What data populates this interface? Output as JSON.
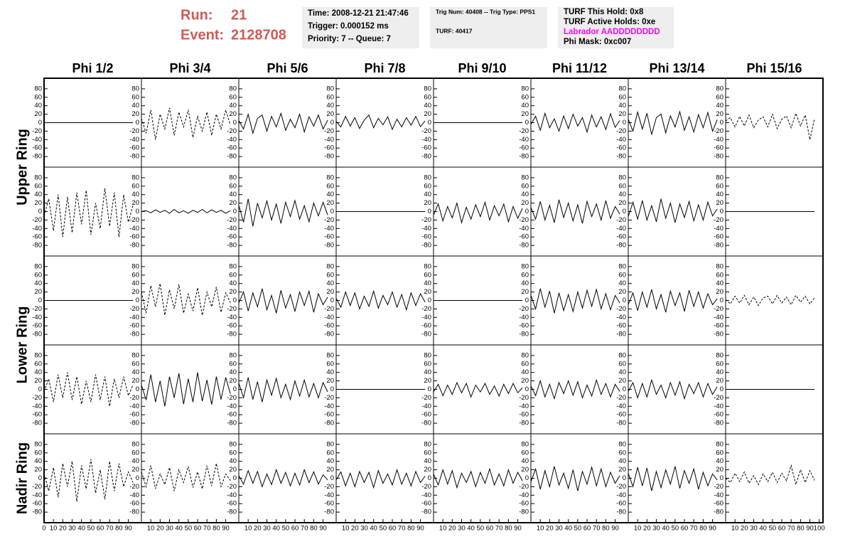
{
  "header": {
    "run_label": "Run:",
    "run": "21",
    "event_label": "Event:",
    "event": "2128708",
    "box1": [
      "Time: 2008-12-21 21:47:46",
      "Trigger: 0.000152 ms",
      "Priority: 7 -- Queue: 7"
    ],
    "box2": [
      "Trig Num: 40408 -- Trig Type: PPS1",
      "TURF: 40417"
    ],
    "box3": [
      "TURF This Hold: 0x8",
      "TURF Active Holds: 0xe",
      "Labrador AADDDDDDDD",
      "Phi Mask: 0xc007"
    ]
  },
  "chart_data": {
    "type": "line",
    "color": "#000000",
    "columns": [
      "Phi 1/2",
      "Phi 3/4",
      "Phi 5/6",
      "Phi 7/8",
      "Phi 9/10",
      "Phi 11/12",
      "Phi 13/14",
      "Phi 15/16"
    ],
    "ring_labels": [
      "Upper Ring",
      "Lower Ring",
      "Nadir Ring"
    ],
    "xlim": [
      0,
      104
    ],
    "xticks": [
      0,
      10,
      20,
      30,
      40,
      50,
      60,
      70,
      80,
      90,
      100
    ],
    "ylim": [
      -105,
      105
    ],
    "yticks": [
      -80,
      -60,
      -40,
      -20,
      0,
      20,
      40,
      60,
      80
    ],
    "x": [
      0,
      5,
      10,
      15,
      20,
      25,
      30,
      35,
      40,
      45,
      50,
      55,
      60,
      65,
      70,
      75,
      80,
      85,
      90,
      95
    ],
    "rows": [
      [
        {
          "style": "solid",
          "values": [
            0,
            0,
            0,
            0,
            0,
            0,
            0,
            0,
            0,
            0,
            0,
            0,
            0,
            0,
            0,
            0,
            0,
            0,
            0,
            0
          ]
        },
        {
          "style": "dashed",
          "values": [
            10,
            -25,
            30,
            -40,
            20,
            -15,
            35,
            -30,
            25,
            -10,
            30,
            -35,
            15,
            -20,
            25,
            -30,
            20,
            -15,
            30,
            -5
          ]
        },
        {
          "style": "solid",
          "values": [
            5,
            -15,
            20,
            -25,
            10,
            18,
            -20,
            15,
            -10,
            22,
            -18,
            8,
            -12,
            20,
            -22,
            14,
            -8,
            18,
            -15,
            6
          ]
        },
        {
          "style": "solid",
          "values": [
            3,
            -10,
            15,
            -8,
            12,
            -14,
            6,
            18,
            -12,
            10,
            -5,
            14,
            -16,
            8,
            -10,
            12,
            -6,
            15,
            -9,
            4
          ]
        },
        {
          "style": "solid",
          "values": [
            0,
            0,
            0,
            0,
            0,
            0,
            0,
            0,
            0,
            0,
            0,
            0,
            0,
            0,
            0,
            0,
            0,
            0,
            0,
            0
          ]
        },
        {
          "style": "solid",
          "values": [
            -4,
            15,
            -18,
            22,
            -12,
            9,
            -20,
            16,
            -14,
            20,
            -8,
            12,
            -22,
            18,
            -10,
            14,
            -16,
            21,
            -11,
            5
          ]
        },
        {
          "style": "solid",
          "values": [
            8,
            -20,
            25,
            -15,
            22,
            -28,
            12,
            20,
            -24,
            16,
            -10,
            26,
            -18,
            14,
            -22,
            19,
            -12,
            24,
            -20,
            7
          ]
        },
        {
          "style": "dashed",
          "values": [
            4,
            12,
            -10,
            15,
            -8,
            18,
            -12,
            6,
            14,
            -10,
            20,
            -14,
            8,
            16,
            -12,
            22,
            -8,
            18,
            -40,
            10
          ]
        }
      ],
      [
        {
          "style": "dashed",
          "values": [
            -10,
            30,
            -45,
            40,
            -60,
            35,
            -50,
            45,
            -30,
            50,
            -55,
            20,
            -40,
            55,
            -35,
            45,
            -60,
            40,
            -25,
            15
          ]
        },
        {
          "style": "solid",
          "values": [
            0,
            2,
            -3,
            4,
            -2,
            3,
            -4,
            5,
            -3,
            2,
            -4,
            3,
            -2,
            5,
            -3,
            4,
            -2,
            3,
            -4,
            2
          ]
        },
        {
          "style": "solid",
          "values": [
            15,
            -25,
            30,
            -35,
            20,
            -15,
            25,
            -20,
            18,
            -28,
            22,
            -12,
            26,
            -18,
            14,
            -24,
            20,
            -10,
            22,
            -8
          ]
        },
        {
          "style": "solid",
          "values": [
            0,
            0,
            0,
            0,
            0,
            0,
            0,
            0,
            0,
            0,
            0,
            0,
            0,
            0,
            0,
            0,
            0,
            0,
            0,
            0
          ]
        },
        {
          "style": "solid",
          "values": [
            -8,
            18,
            -22,
            12,
            -15,
            20,
            -26,
            10,
            -18,
            16,
            -12,
            22,
            -20,
            14,
            -10,
            18,
            -24,
            12,
            -16,
            8
          ]
        },
        {
          "style": "solid",
          "values": [
            10,
            -18,
            24,
            -20,
            15,
            -26,
            28,
            -14,
            20,
            -22,
            16,
            -28,
            24,
            -12,
            18,
            -20,
            26,
            -16,
            12,
            -6
          ]
        },
        {
          "style": "solid",
          "values": [
            -12,
            22,
            -18,
            26,
            -20,
            14,
            -24,
            30,
            -16,
            20,
            -26,
            18,
            -14,
            24,
            -22,
            16,
            -20,
            22,
            -10,
            6
          ]
        },
        {
          "style": "solid",
          "values": [
            0,
            0,
            0,
            0,
            0,
            0,
            0,
            0,
            0,
            0,
            0,
            0,
            0,
            0,
            0,
            0,
            0,
            0,
            0,
            0
          ]
        }
      ],
      [
        {
          "style": "solid",
          "values": [
            0,
            0,
            0,
            0,
            0,
            0,
            0,
            0,
            0,
            0,
            0,
            0,
            0,
            0,
            0,
            0,
            0,
            0,
            0,
            0
          ]
        },
        {
          "style": "dashed",
          "values": [
            20,
            -30,
            35,
            -15,
            40,
            -35,
            25,
            -20,
            38,
            -30,
            15,
            -25,
            30,
            -35,
            20,
            -15,
            32,
            -28,
            18,
            -5
          ]
        },
        {
          "style": "solid",
          "values": [
            -6,
            20,
            -25,
            18,
            -15,
            28,
            -22,
            12,
            -30,
            24,
            -18,
            14,
            -26,
            20,
            -12,
            22,
            -28,
            16,
            -10,
            8
          ]
        },
        {
          "style": "solid",
          "values": [
            5,
            -16,
            20,
            -12,
            18,
            -20,
            10,
            -14,
            22,
            -18,
            12,
            -10,
            20,
            -16,
            14,
            -22,
            18,
            -12,
            16,
            -4
          ]
        },
        {
          "style": "solid",
          "values": [
            0,
            0,
            0,
            0,
            0,
            0,
            0,
            0,
            0,
            0,
            0,
            0,
            0,
            0,
            0,
            0,
            0,
            0,
            0,
            0
          ]
        },
        {
          "style": "solid",
          "values": [
            12,
            -20,
            28,
            -16,
            22,
            -30,
            18,
            -24,
            14,
            -26,
            20,
            -18,
            24,
            -14,
            26,
            -20,
            16,
            -22,
            12,
            -6
          ]
        },
        {
          "style": "solid",
          "values": [
            -10,
            18,
            -24,
            20,
            -16,
            26,
            -20,
            14,
            -28,
            22,
            -12,
            18,
            -26,
            24,
            -14,
            20,
            -18,
            16,
            -10,
            4
          ]
        },
        {
          "style": "dashed",
          "values": [
            2,
            -8,
            10,
            -6,
            12,
            -10,
            8,
            -12,
            6,
            10,
            -8,
            12,
            -6,
            8,
            -10,
            12,
            -4,
            10,
            -8,
            6
          ]
        }
      ],
      [
        {
          "style": "dashed",
          "values": [
            -5,
            25,
            -30,
            35,
            -20,
            40,
            -25,
            30,
            -35,
            20,
            -30,
            35,
            -25,
            30,
            -40,
            25,
            -20,
            30,
            -15,
            10
          ]
        },
        {
          "style": "solid",
          "values": [
            10,
            -25,
            35,
            -30,
            20,
            -40,
            30,
            -20,
            38,
            -35,
            25,
            -30,
            40,
            -28,
            22,
            -36,
            30,
            -24,
            28,
            -10
          ]
        },
        {
          "style": "solid",
          "values": [
            15,
            -20,
            28,
            -24,
            18,
            -30,
            22,
            -14,
            26,
            -20,
            12,
            -24,
            20,
            -16,
            22,
            -18,
            14,
            -20,
            16,
            -6
          ]
        },
        {
          "style": "solid",
          "values": [
            0,
            0,
            0,
            0,
            0,
            0,
            0,
            0,
            0,
            0,
            0,
            0,
            0,
            0,
            0,
            0,
            0,
            0,
            0,
            0
          ]
        },
        {
          "style": "solid",
          "values": [
            -6,
            12,
            -15,
            10,
            -12,
            16,
            -8,
            14,
            -18,
            10,
            -6,
            14,
            -12,
            8,
            -16,
            12,
            -10,
            14,
            -8,
            4
          ]
        },
        {
          "style": "solid",
          "values": [
            8,
            -15,
            20,
            -18,
            12,
            -22,
            16,
            -10,
            20,
            -14,
            18,
            -20,
            10,
            -16,
            22,
            -12,
            14,
            -18,
            12,
            -5
          ]
        },
        {
          "style": "solid",
          "values": [
            -5,
            16,
            -20,
            14,
            -18,
            22,
            -12,
            10,
            -20,
            16,
            -14,
            18,
            -22,
            12,
            -10,
            16,
            -18,
            14,
            -12,
            6
          ]
        },
        {
          "style": "solid",
          "values": [
            0,
            0,
            0,
            0,
            0,
            0,
            0,
            0,
            0,
            0,
            0,
            0,
            0,
            0,
            0,
            0,
            0,
            0,
            0,
            0
          ]
        }
      ],
      [
        {
          "style": "dashed",
          "values": [
            10,
            -30,
            25,
            -45,
            35,
            -20,
            40,
            -55,
            30,
            -25,
            45,
            -35,
            20,
            -50,
            40,
            -30,
            35,
            -20,
            15,
            -10
          ]
        },
        {
          "style": "dashed",
          "values": [
            15,
            -20,
            30,
            -25,
            10,
            -15,
            25,
            -30,
            20,
            -10,
            28,
            -22,
            15,
            -25,
            30,
            -18,
            35,
            -20,
            10,
            -5
          ]
        },
        {
          "style": "solid",
          "values": [
            6,
            -14,
            18,
            -12,
            16,
            -20,
            10,
            -15,
            20,
            -12,
            14,
            -18,
            12,
            -16,
            20,
            -10,
            15,
            -14,
            8,
            -4
          ]
        },
        {
          "style": "solid",
          "values": [
            -4,
            15,
            -18,
            12,
            -20,
            16,
            -10,
            14,
            -22,
            18,
            -12,
            10,
            -16,
            20,
            -14,
            12,
            -18,
            16,
            -10,
            5
          ]
        },
        {
          "style": "solid",
          "values": [
            10,
            -16,
            20,
            -14,
            18,
            -22,
            12,
            -10,
            16,
            -20,
            14,
            -12,
            22,
            -16,
            10,
            -18,
            20,
            -12,
            14,
            -6
          ]
        },
        {
          "style": "solid",
          "values": [
            -8,
            22,
            -26,
            18,
            -20,
            28,
            -16,
            12,
            -24,
            20,
            -30,
            16,
            -14,
            26,
            -18,
            22,
            -20,
            14,
            -12,
            6
          ]
        },
        {
          "style": "solid",
          "values": [
            12,
            -20,
            26,
            -18,
            24,
            -30,
            16,
            -22,
            20,
            -14,
            28,
            -24,
            18,
            -12,
            22,
            -26,
            14,
            -18,
            10,
            -4
          ]
        },
        {
          "style": "dashed",
          "values": [
            0,
            -10,
            12,
            -8,
            15,
            -12,
            6,
            -15,
            10,
            -8,
            14,
            -10,
            12,
            -6,
            30,
            -15,
            20,
            -10,
            18,
            -5
          ]
        }
      ]
    ]
  }
}
